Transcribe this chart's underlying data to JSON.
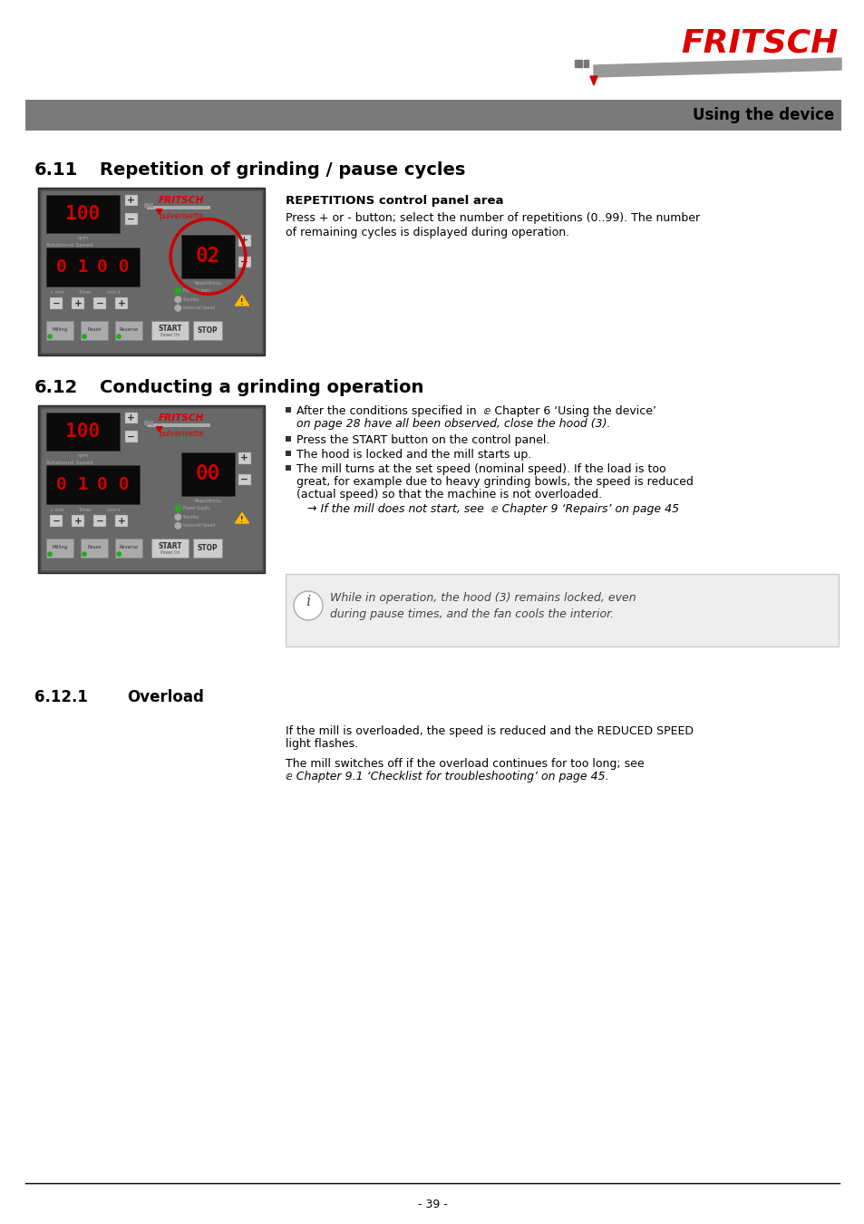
{
  "page_bg": "#ffffff",
  "header_bar_color": "#7a7a7a",
  "header_text": "Using the device",
  "fritsch_text_color": "#dd0000",
  "section_611_num": "6.11",
  "section_611_title": "Repetition of grinding / pause cycles",
  "section_612_num": "6.12",
  "section_612_title": "Conducting a grinding operation",
  "section_6121_num": "6.12.1",
  "section_6121_title": "Overload",
  "rep_label_bold": "REPETITIONS control panel area",
  "rep_text_line1": "Press + or - button; select the number of repetitions (0..99). The number",
  "rep_text_line2": "of remaining cycles is displayed during operation.",
  "bullet1": "After the conditions specified in  ⅇ Chapter 6 ‘Using the device’",
  "bullet1b": "on page 28 have all been observed, close the hood (3).",
  "bullet2": "Press the START button on the control panel.",
  "bullet3": "The hood is locked and the mill starts up.",
  "bullet4a": "The mill turns at the set speed (nominal speed). If the load is too",
  "bullet4b": "great, for example due to heavy grinding bowls, the speed is reduced",
  "bullet4c": "(actual speed) so that the machine is not overloaded.",
  "bullet4d": "→ If the mill does not start, see  ⅇ Chapter 9 ‘Repairs’ on page 45",
  "info_line1": "While in operation, the hood (3) remains locked, even",
  "info_line2": "during pause times, and the fan cools the interior.",
  "overload_text1a": "If the mill is overloaded, the speed is reduced and the REDUCED SPEED",
  "overload_text1b": "light flashes.",
  "overload_text2a": "The mill switches off if the overload continues for too long; see",
  "overload_text2b": "ⅇ Chapter 9.1 ‘Checklist for troubleshooting’ on page 45.",
  "footer_text": "- 39 -",
  "panel_bg": "#5a5a5a",
  "panel_dark": "#2a2a2a",
  "led_red": "#cc0000",
  "led_dark_bg": "#111111",
  "btn_color": "#888888",
  "start_color": "#dddddd",
  "stop_color": "#dddddd",
  "info_box_bg": "#eeeeee",
  "logo_gray": "#999999"
}
